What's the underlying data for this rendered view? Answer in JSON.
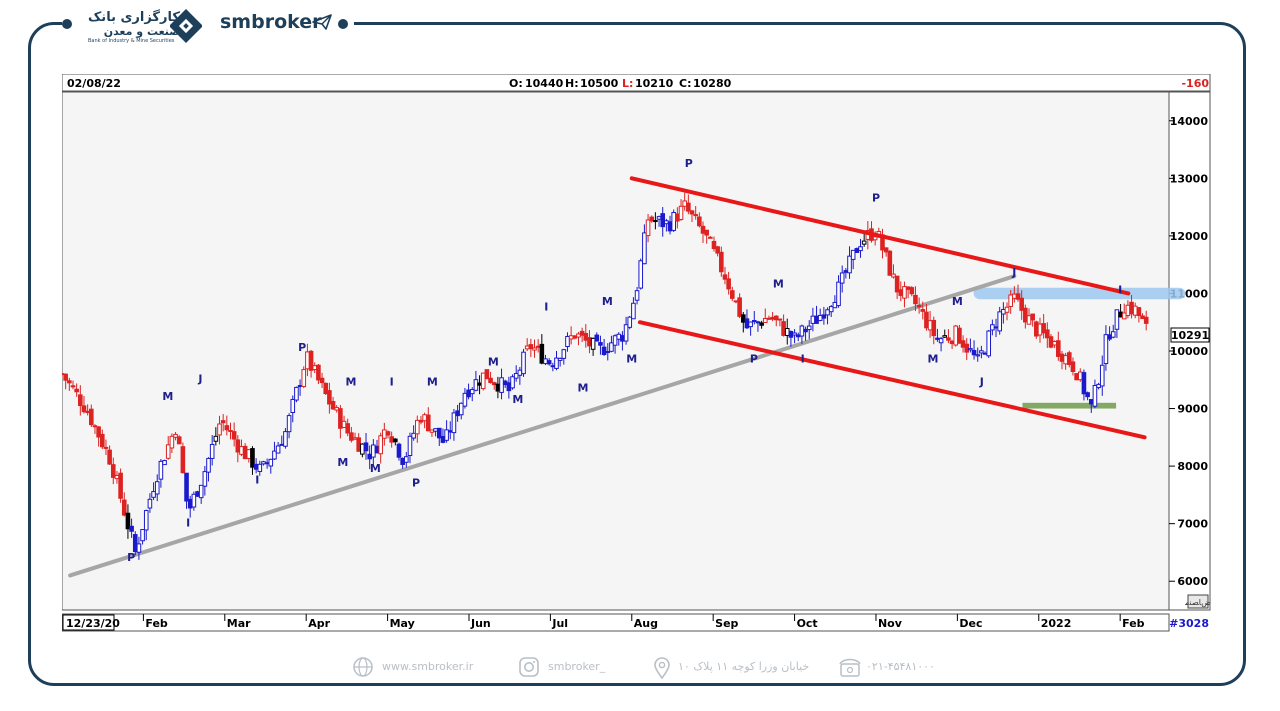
{
  "header": {
    "bank_name_fa_line1": "کارگزاری بانک",
    "bank_name_fa_line2": "صنعت و معدن",
    "bank_name_en": "Bank of Industry & Mine Securities",
    "brand": "smbroker",
    "brand_icon": "paper-plane-icon",
    "bank_icon": "diamond-logo-icon"
  },
  "colors": {
    "frame": "#1e3f5a",
    "channel": "#e81818",
    "trendline": "#a6a6a6",
    "resistance_zone": "#9ec8ee",
    "support_zone": "#6e9b4a",
    "up_candle": "#1a1acc",
    "down_candle": "#dd2222",
    "neutral_candle": "#000000",
    "footer_text": "#b8bfc6"
  },
  "chart_info": {
    "date": "02/08/22",
    "ohlc": [
      {
        "label": "O:",
        "value": "10440"
      },
      {
        "label": "H:",
        "value": "10500"
      },
      {
        "label": "L:",
        "value": "10210"
      },
      {
        "label": "C:",
        "value": "10280"
      }
    ],
    "change": "-160",
    "last_price": "10291",
    "start_date": "12/23/20",
    "bar_count": "#3028",
    "corner_label": "ﺽﺎﺼﻨﻣ"
  },
  "chart_data": {
    "type": "candlestick",
    "title": "",
    "xlabel": "",
    "ylabel": "",
    "ylim": [
      5500,
      14500
    ],
    "y_ticks": [
      "14000",
      "13000",
      "12000",
      "11000",
      "10000",
      "9000",
      "8000",
      "7000",
      "6000"
    ],
    "x_ticks": [
      "Feb",
      "Mar",
      "Apr",
      "May",
      "Jun",
      "Jul",
      "Aug",
      "Sep",
      "Oct",
      "Nov",
      "Dec",
      "2022",
      "Feb"
    ],
    "grid": false,
    "x_range_months": [
      0,
      13.6
    ],
    "closes": [
      {
        "t": 0.0,
        "v": 9600
      },
      {
        "t": 0.3,
        "v": 9000
      },
      {
        "t": 0.6,
        "v": 8100
      },
      {
        "t": 0.9,
        "v": 6500
      },
      {
        "t": 1.15,
        "v": 7800
      },
      {
        "t": 1.4,
        "v": 8700
      },
      {
        "t": 1.55,
        "v": 7200
      },
      {
        "t": 1.75,
        "v": 7900
      },
      {
        "t": 1.95,
        "v": 8800
      },
      {
        "t": 2.2,
        "v": 8300
      },
      {
        "t": 2.45,
        "v": 7900
      },
      {
        "t": 2.75,
        "v": 8600
      },
      {
        "t": 3.0,
        "v": 9900
      },
      {
        "t": 3.25,
        "v": 9200
      },
      {
        "t": 3.5,
        "v": 8600
      },
      {
        "t": 3.8,
        "v": 8200
      },
      {
        "t": 4.0,
        "v": 8700
      },
      {
        "t": 4.2,
        "v": 8100
      },
      {
        "t": 4.4,
        "v": 8900
      },
      {
        "t": 4.7,
        "v": 8400
      },
      {
        "t": 4.95,
        "v": 9300
      },
      {
        "t": 5.2,
        "v": 9600
      },
      {
        "t": 5.5,
        "v": 9300
      },
      {
        "t": 5.75,
        "v": 10100
      },
      {
        "t": 6.0,
        "v": 9800
      },
      {
        "t": 6.3,
        "v": 10300
      },
      {
        "t": 6.6,
        "v": 10000
      },
      {
        "t": 6.9,
        "v": 10300
      },
      {
        "t": 7.05,
        "v": 11000
      },
      {
        "t": 7.2,
        "v": 12300
      },
      {
        "t": 7.45,
        "v": 12200
      },
      {
        "t": 7.65,
        "v": 12500
      },
      {
        "t": 7.9,
        "v": 12000
      },
      {
        "t": 8.15,
        "v": 11300
      },
      {
        "t": 8.4,
        "v": 10400
      },
      {
        "t": 8.7,
        "v": 10600
      },
      {
        "t": 9.0,
        "v": 10200
      },
      {
        "t": 9.3,
        "v": 10600
      },
      {
        "t": 9.55,
        "v": 11100
      },
      {
        "t": 9.8,
        "v": 11900
      },
      {
        "t": 10.0,
        "v": 12100
      },
      {
        "t": 10.25,
        "v": 11100
      },
      {
        "t": 10.5,
        "v": 10800
      },
      {
        "t": 10.75,
        "v": 10200
      },
      {
        "t": 11.0,
        "v": 10300
      },
      {
        "t": 11.25,
        "v": 9800
      },
      {
        "t": 11.5,
        "v": 10600
      },
      {
        "t": 11.7,
        "v": 10900
      },
      {
        "t": 11.95,
        "v": 10400
      },
      {
        "t": 12.2,
        "v": 10100
      },
      {
        "t": 12.45,
        "v": 9700
      },
      {
        "t": 12.65,
        "v": 9000
      },
      {
        "t": 12.85,
        "v": 10300
      },
      {
        "t": 13.05,
        "v": 10800
      },
      {
        "t": 13.2,
        "v": 10700
      },
      {
        "t": 13.35,
        "v": 10300
      }
    ],
    "upper_channel": [
      {
        "t": 7.0,
        "v": 13000
      },
      {
        "t": 13.1,
        "v": 11000
      }
    ],
    "lower_channel": [
      {
        "t": 7.1,
        "v": 10500
      },
      {
        "t": 13.3,
        "v": 8500
      }
    ],
    "trendline": [
      {
        "t": 0.1,
        "v": 6100
      },
      {
        "t": 11.7,
        "v": 11300
      }
    ],
    "resistance_zone": {
      "t0": 11.2,
      "t1": 13.8,
      "y0": 10900,
      "y1": 11100
    },
    "support_zone": {
      "t0": 11.8,
      "t1": 12.95,
      "y0": 9000,
      "y1": 9100
    },
    "annotations": [
      {
        "text": "P",
        "t": 0.85,
        "v": 6350
      },
      {
        "text": "M",
        "t": 1.3,
        "v": 9150
      },
      {
        "text": "I",
        "t": 1.55,
        "v": 6950
      },
      {
        "text": "J",
        "t": 1.7,
        "v": 9450
      },
      {
        "text": "I",
        "t": 2.4,
        "v": 7700
      },
      {
        "text": "P",
        "t": 2.95,
        "v": 10000
      },
      {
        "text": "M",
        "t": 3.45,
        "v": 8000
      },
      {
        "text": "M",
        "t": 3.55,
        "v": 9400
      },
      {
        "text": "M",
        "t": 3.85,
        "v": 7900
      },
      {
        "text": "I",
        "t": 4.05,
        "v": 9400
      },
      {
        "text": "P",
        "t": 4.35,
        "v": 7650
      },
      {
        "text": "M",
        "t": 4.55,
        "v": 9400
      },
      {
        "text": "M",
        "t": 5.3,
        "v": 9750
      },
      {
        "text": "M",
        "t": 5.6,
        "v": 9100
      },
      {
        "text": "I",
        "t": 5.95,
        "v": 10700
      },
      {
        "text": "M",
        "t": 6.4,
        "v": 9300
      },
      {
        "text": "M",
        "t": 6.7,
        "v": 10800
      },
      {
        "text": "M",
        "t": 7.0,
        "v": 9800
      },
      {
        "text": "P",
        "t": 7.7,
        "v": 13200
      },
      {
        "text": "P",
        "t": 8.5,
        "v": 9800
      },
      {
        "text": "M",
        "t": 8.8,
        "v": 11100
      },
      {
        "text": "I",
        "t": 9.1,
        "v": 9800
      },
      {
        "text": "P",
        "t": 10.0,
        "v": 12600
      },
      {
        "text": "M",
        "t": 10.7,
        "v": 9800
      },
      {
        "text": "M",
        "t": 11.0,
        "v": 10800
      },
      {
        "text": "J",
        "t": 11.3,
        "v": 9400
      },
      {
        "text": "J",
        "t": 11.7,
        "v": 11300
      },
      {
        "text": "I",
        "t": 13.0,
        "v": 11000
      }
    ]
  },
  "footer": {
    "website": "www.smbroker.ir",
    "instagram": "smbroker_",
    "address": "خیابان وزرا کوچه ۱۱ پلاک ۱۰",
    "phone": "۰۲۱-۴۵۴۸۱۰۰۰",
    "icons": [
      "globe-icon",
      "instagram-icon",
      "location-pin-icon",
      "telephone-icon"
    ]
  }
}
